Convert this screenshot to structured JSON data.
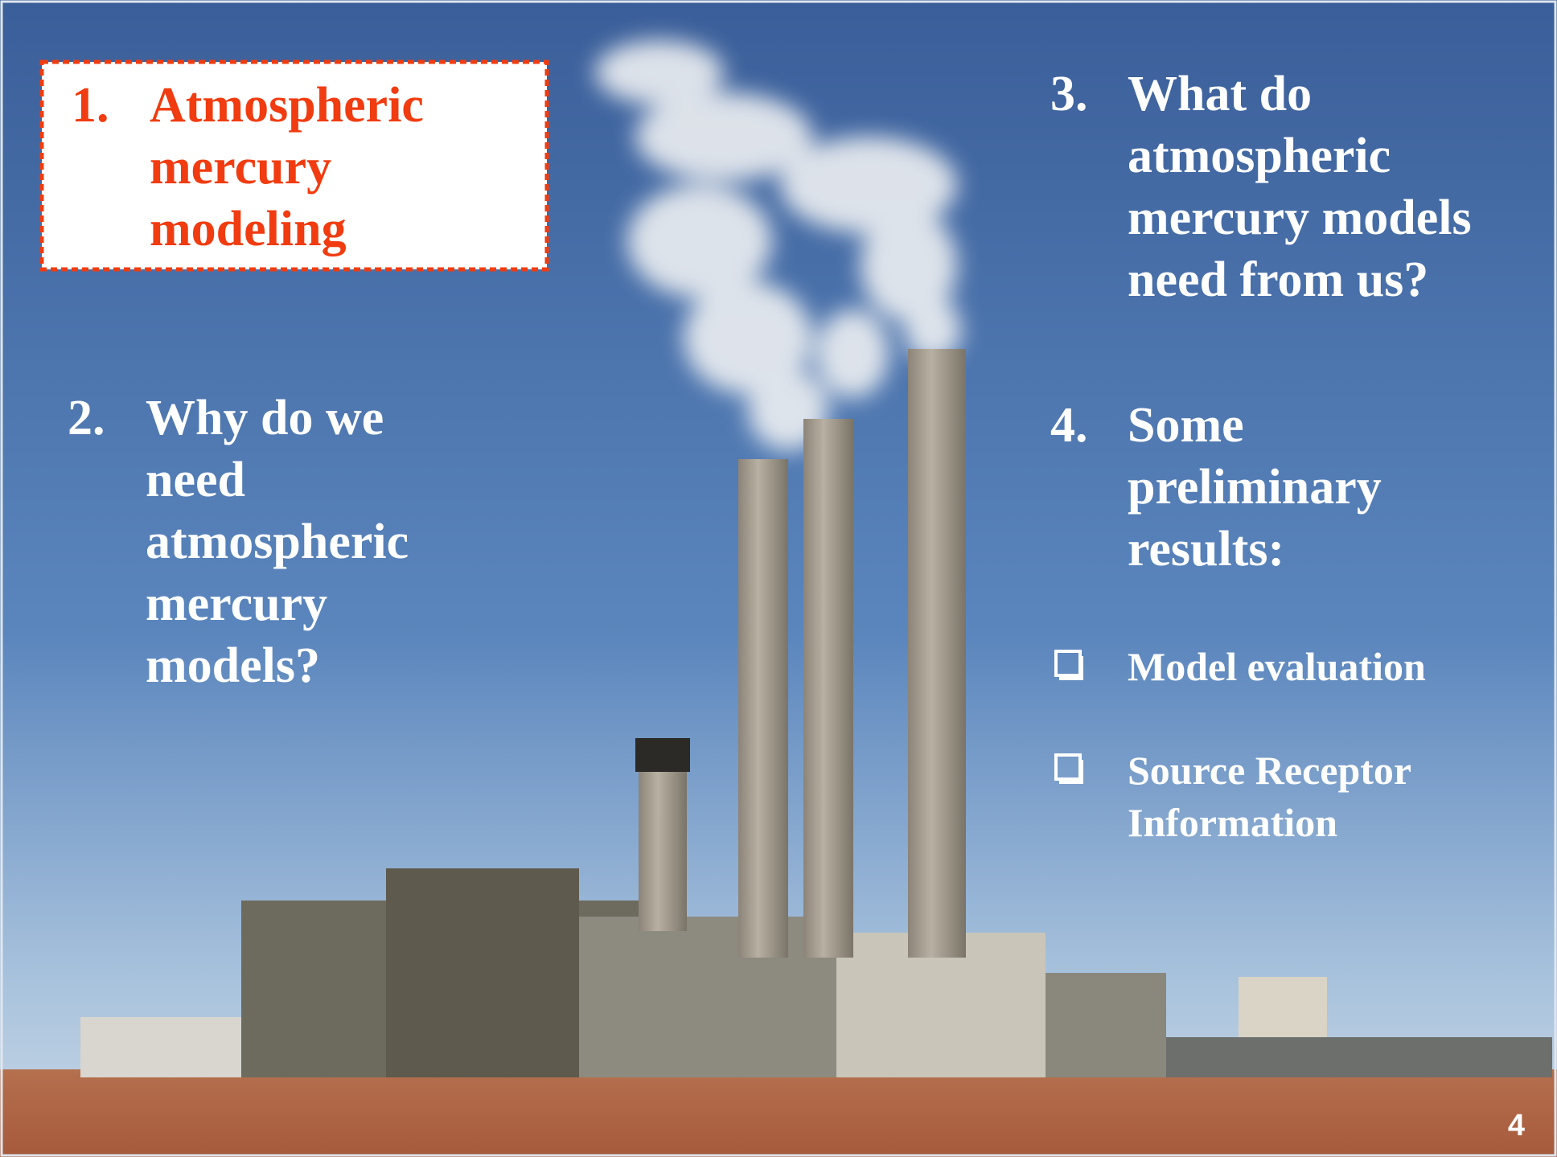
{
  "items": [
    {
      "number": "1.",
      "lines": [
        "Atmospheric",
        "mercury",
        "modeling"
      ]
    },
    {
      "number": "2.",
      "lines": [
        "Why do we",
        "need",
        "atmospheric",
        "mercury",
        "models?"
      ]
    },
    {
      "number": "3.",
      "lines": [
        "What do",
        "atmospheric",
        "mercury models",
        "need from us?"
      ]
    },
    {
      "number": "4.",
      "lines": [
        "Some",
        "preliminary",
        "results:"
      ]
    }
  ],
  "bullets": [
    {
      "lines": [
        "Model evaluation"
      ]
    },
    {
      "lines": [
        "Source Receptor",
        "Information"
      ]
    }
  ],
  "page_number": "4"
}
